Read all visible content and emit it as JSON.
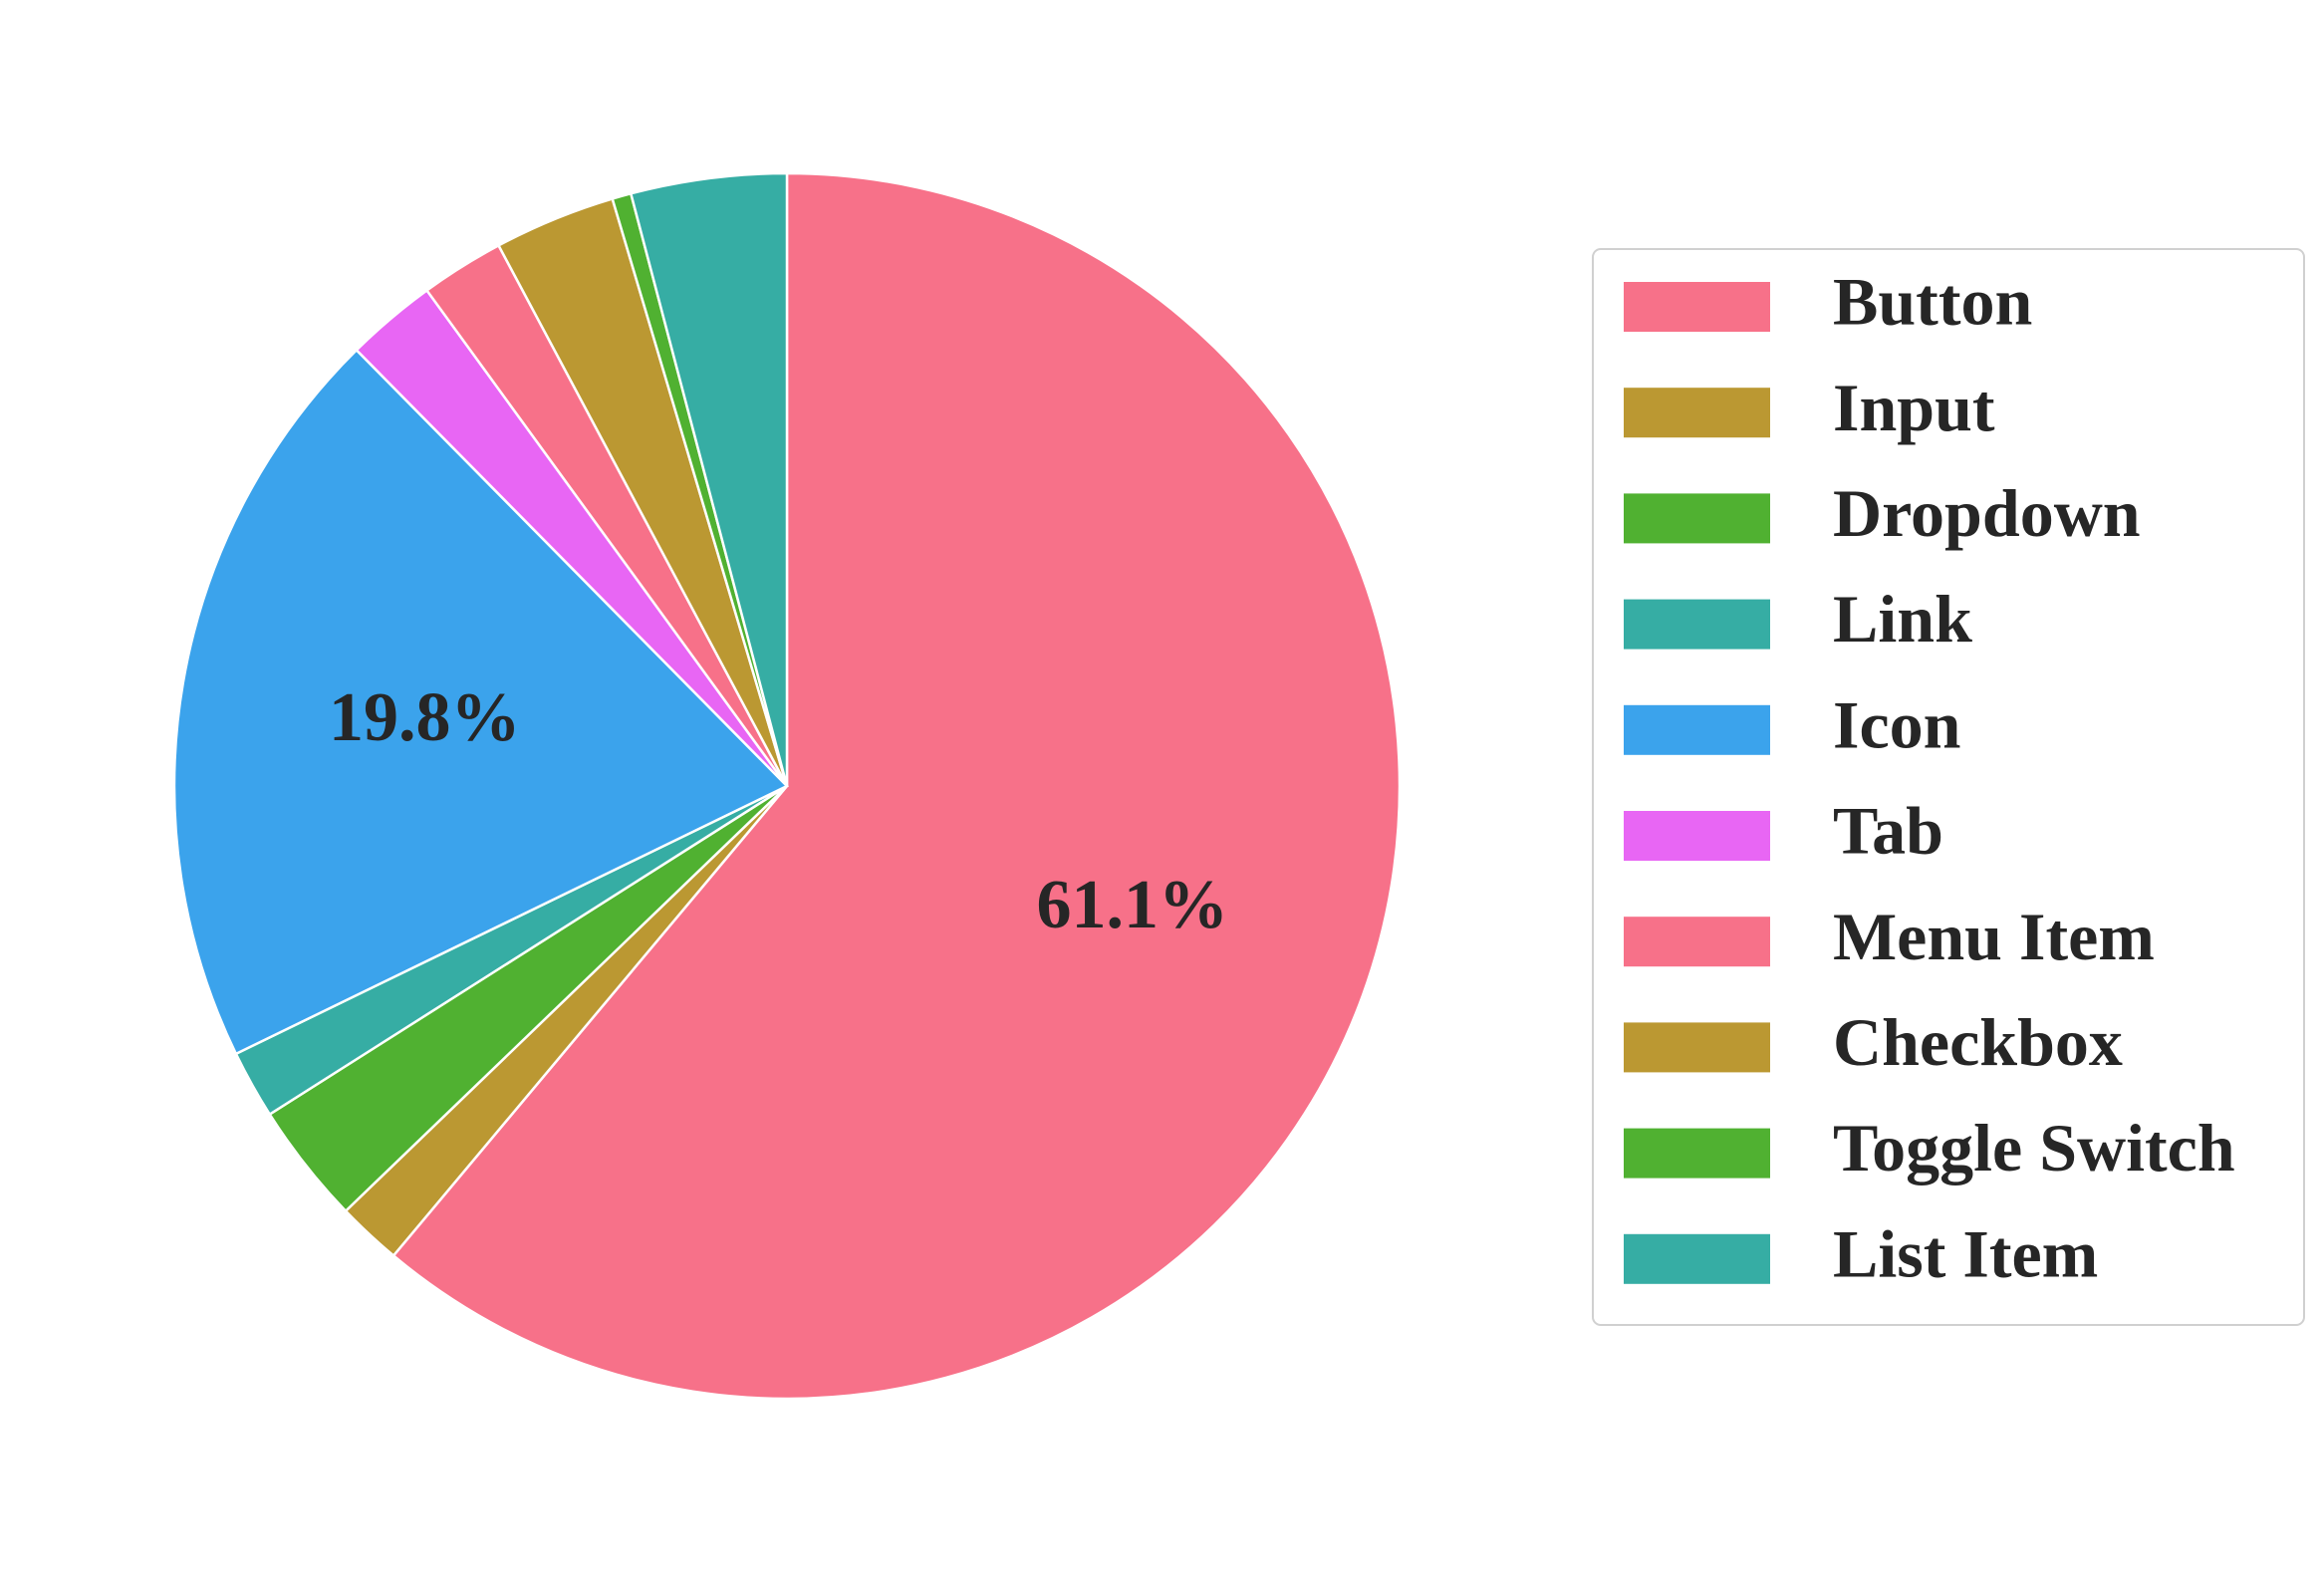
{
  "chart_data": {
    "type": "pie",
    "categories": [
      "Button",
      "Input",
      "Dropdown",
      "Link",
      "Icon",
      "Tab",
      "Menu Item",
      "Checkbox",
      "Toggle Switch",
      "List Item"
    ],
    "values": [
      61.1,
      1.7,
      3.2,
      1.8,
      19.8,
      2.4,
      2.2,
      3.2,
      0.5,
      4.1
    ],
    "value_labels": [
      "61.1%",
      null,
      null,
      null,
      "19.8%",
      null,
      null,
      null,
      null,
      null
    ],
    "colors": [
      "#f77189",
      "#bb9832",
      "#50b131",
      "#36ada4",
      "#3ba3ec",
      "#e866f4",
      "#f77189",
      "#bb9832",
      "#50b131",
      "#36ada4"
    ],
    "start_angle": 90,
    "direction": "clockwise",
    "legend": "right"
  }
}
